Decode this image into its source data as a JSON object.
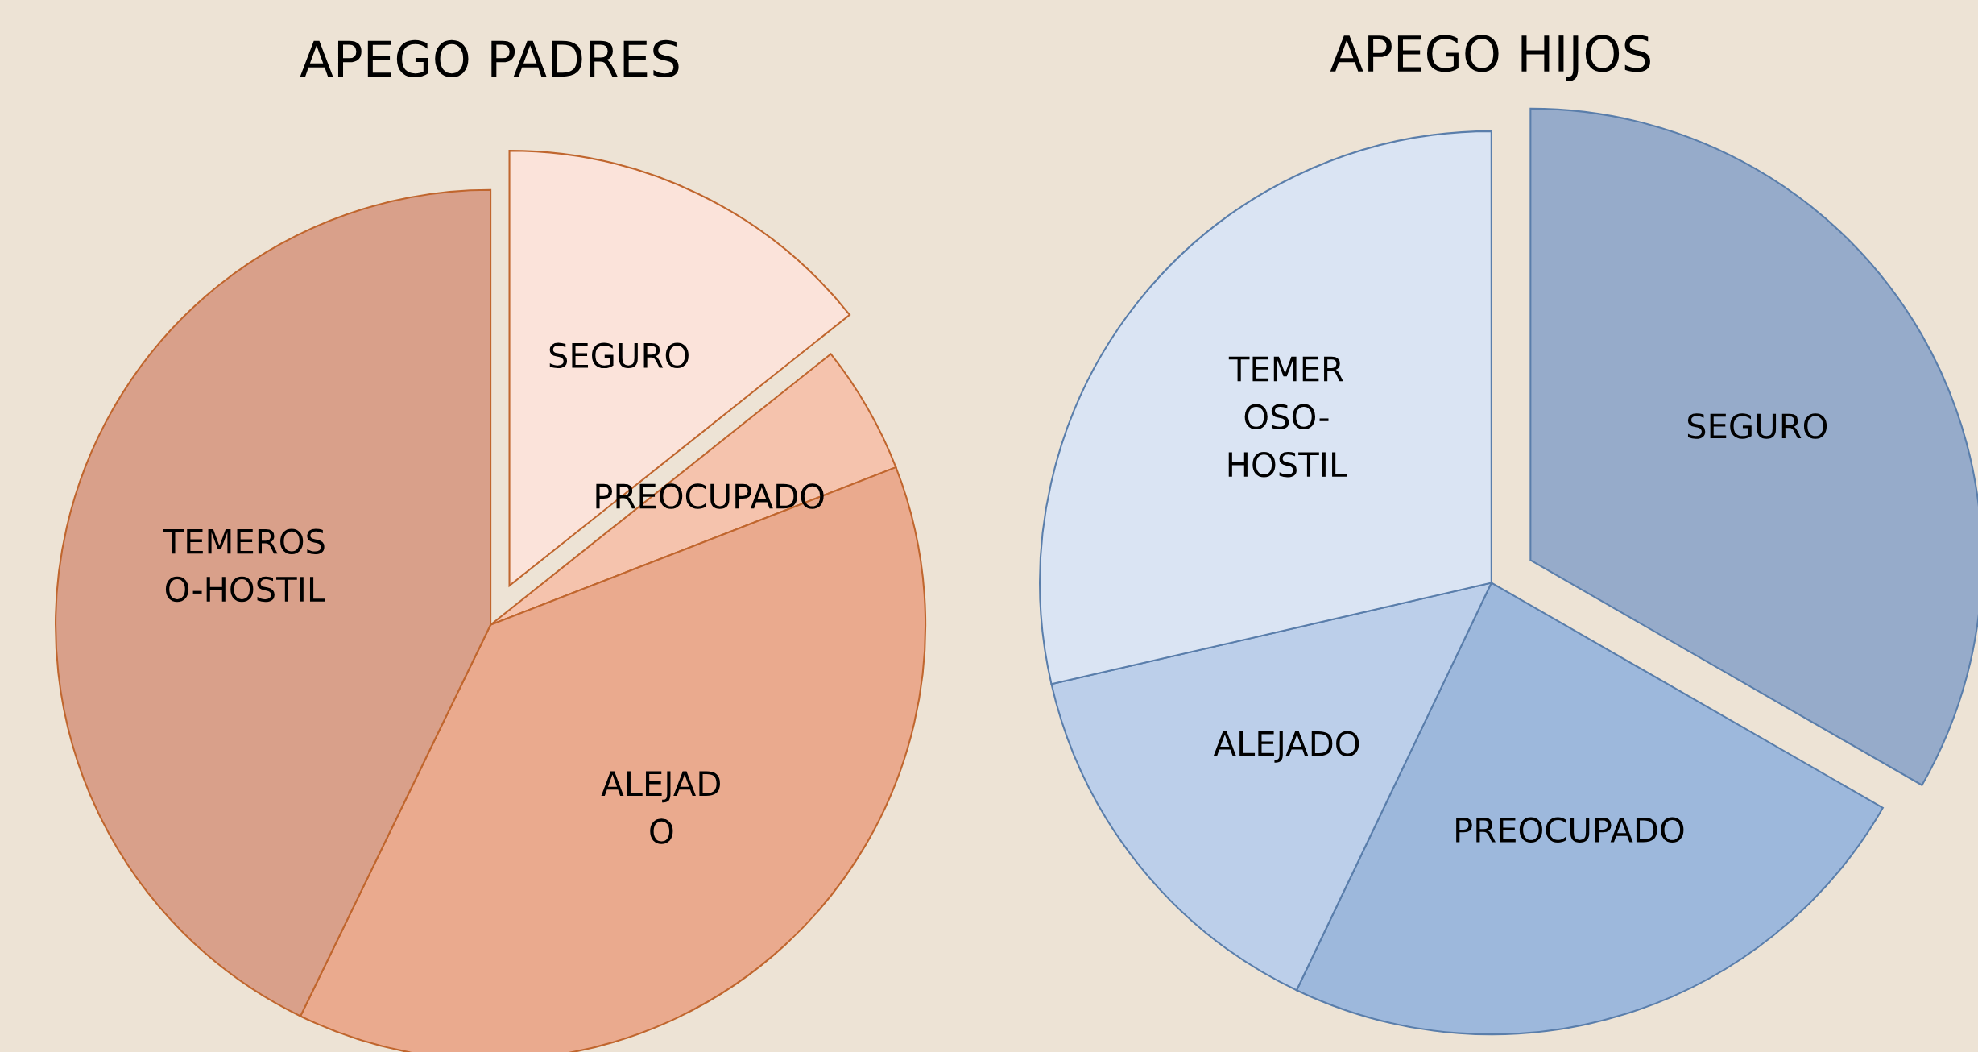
{
  "chart_data": [
    {
      "type": "pie",
      "title": "APEGO PADRES",
      "categories": [
        "SEGURO",
        "PREOCUPADO",
        "ALEJAD\nO",
        "TEMEROS\nO-HOSTIL"
      ],
      "values": [
        14.3,
        4.8,
        38.1,
        42.8
      ],
      "colors": [
        "#fbe3da",
        "#f5c3ad",
        "#eaaa8e",
        "#d9a08a"
      ]
    },
    {
      "type": "pie",
      "title": "APEGO HIJOS",
      "categories": [
        "SEGURO",
        "PREOCUPADO",
        "ALEJADO",
        "TEMER\nOSO-\nHOSTIL"
      ],
      "values": [
        33.3,
        23.8,
        14.3,
        28.6
      ],
      "colors": [
        "#96abca",
        "#9db8dc",
        "#bccfea",
        "#dae4f3"
      ]
    }
  ]
}
